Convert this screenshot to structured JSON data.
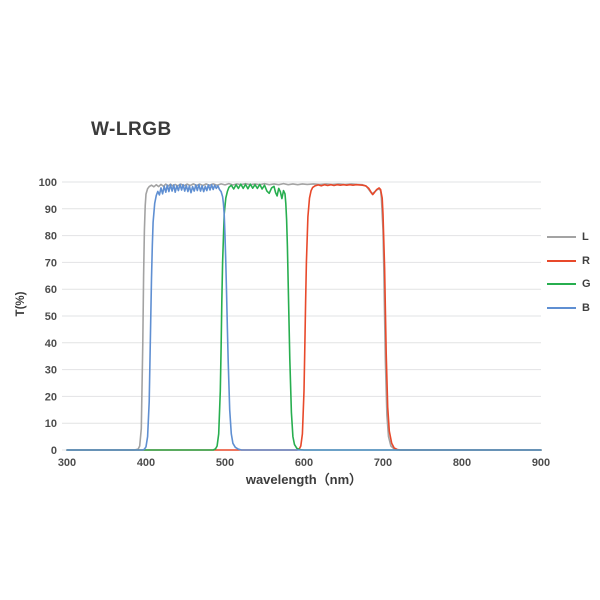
{
  "title": "W-LRGB",
  "colors": {
    "grid": "#e2e3e4",
    "tick_label": "#4d4d4d",
    "axis_title": "#3c3c3c",
    "title_text": "#3b3b3b"
  },
  "chart_data": {
    "type": "line",
    "title": "W-LRGB",
    "xlabel": "wavelength（nm）",
    "ylabel": "T(%)",
    "xlim": [
      300,
      900
    ],
    "ylim": [
      0,
      100
    ],
    "x_ticks": [
      300,
      400,
      500,
      600,
      700,
      800,
      900
    ],
    "y_ticks": [
      0,
      10,
      20,
      30,
      40,
      50,
      60,
      70,
      80,
      90,
      100
    ],
    "grid": "horizontal",
    "legend_position": "right",
    "legend_entries": [
      "L",
      "R",
      "G",
      "B"
    ],
    "series": [
      {
        "name": "L",
        "color": "#a3a3a3",
        "points": [
          [
            300,
            0
          ],
          [
            385,
            0
          ],
          [
            390,
            0.3
          ],
          [
            392,
            1.5
          ],
          [
            394,
            8
          ],
          [
            396,
            40
          ],
          [
            397,
            65
          ],
          [
            398,
            82
          ],
          [
            399,
            91
          ],
          [
            400,
            95.5
          ],
          [
            402,
            97.5
          ],
          [
            404,
            98.3
          ],
          [
            407,
            98.8
          ],
          [
            410,
            98.2
          ],
          [
            413,
            99.0
          ],
          [
            416,
            98.3
          ],
          [
            419,
            99.1
          ],
          [
            422,
            98.4
          ],
          [
            425,
            99.2
          ],
          [
            428,
            98.5
          ],
          [
            431,
            99.2
          ],
          [
            434,
            98.5
          ],
          [
            437,
            99.1
          ],
          [
            440,
            98.6
          ],
          [
            444,
            99.2
          ],
          [
            448,
            98.6
          ],
          [
            452,
            99.2
          ],
          [
            456,
            98.7
          ],
          [
            460,
            99.3
          ],
          [
            464,
            98.7
          ],
          [
            468,
            99.2
          ],
          [
            472,
            98.7
          ],
          [
            476,
            99.3
          ],
          [
            480,
            98.8
          ],
          [
            485,
            99.3
          ],
          [
            490,
            98.8
          ],
          [
            495,
            99.3
          ],
          [
            500,
            98.9
          ],
          [
            505,
            99.4
          ],
          [
            510,
            98.9
          ],
          [
            515,
            99.3
          ],
          [
            520,
            99.0
          ],
          [
            526,
            99.4
          ],
          [
            532,
            99.0
          ],
          [
            538,
            99.3
          ],
          [
            544,
            99.0
          ],
          [
            550,
            99.4
          ],
          [
            556,
            99.0
          ],
          [
            562,
            99.3
          ],
          [
            568,
            99.0
          ],
          [
            574,
            99.4
          ],
          [
            580,
            99.0
          ],
          [
            586,
            99.3
          ],
          [
            592,
            99.0
          ],
          [
            598,
            99.3
          ],
          [
            604,
            99.1
          ],
          [
            612,
            99.3
          ],
          [
            620,
            99.1
          ],
          [
            628,
            99.3
          ],
          [
            636,
            99.1
          ],
          [
            644,
            99.3
          ],
          [
            652,
            99.1
          ],
          [
            660,
            99.3
          ],
          [
            668,
            99.1
          ],
          [
            674,
            99.0
          ],
          [
            679,
            98.4
          ],
          [
            683,
            96.8
          ],
          [
            686,
            95.6
          ],
          [
            689,
            96.2
          ],
          [
            692,
            97.0
          ],
          [
            695,
            97.5
          ],
          [
            697,
            96.8
          ],
          [
            698,
            94
          ],
          [
            700,
            82
          ],
          [
            701,
            68
          ],
          [
            702,
            50
          ],
          [
            703,
            33
          ],
          [
            705,
            13
          ],
          [
            707,
            5
          ],
          [
            710,
            1.5
          ],
          [
            714,
            0.4
          ],
          [
            718,
            0
          ],
          [
            900,
            0
          ]
        ]
      },
      {
        "name": "R",
        "color": "#e8492b",
        "points": [
          [
            300,
            0
          ],
          [
            591,
            0
          ],
          [
            594,
            0.4
          ],
          [
            596,
            1.5
          ],
          [
            598,
            6
          ],
          [
            600,
            22
          ],
          [
            601,
            38
          ],
          [
            602,
            55
          ],
          [
            603,
            70
          ],
          [
            605,
            87
          ],
          [
            607,
            94
          ],
          [
            609,
            96.8
          ],
          [
            611,
            98
          ],
          [
            614,
            98.6
          ],
          [
            618,
            98.9
          ],
          [
            622,
            98.6
          ],
          [
            626,
            99.0
          ],
          [
            630,
            98.7
          ],
          [
            634,
            99.0
          ],
          [
            638,
            98.7
          ],
          [
            642,
            99.0
          ],
          [
            646,
            98.8
          ],
          [
            650,
            99.0
          ],
          [
            654,
            98.8
          ],
          [
            658,
            99.0
          ],
          [
            662,
            98.8
          ],
          [
            666,
            99.0
          ],
          [
            670,
            98.9
          ],
          [
            674,
            98.8
          ],
          [
            678,
            98.6
          ],
          [
            682,
            97.6
          ],
          [
            685,
            96.2
          ],
          [
            687,
            95.3
          ],
          [
            689,
            96.0
          ],
          [
            692,
            97.2
          ],
          [
            695,
            97.8
          ],
          [
            697,
            97.2
          ],
          [
            699,
            94
          ],
          [
            700,
            88
          ],
          [
            702,
            68
          ],
          [
            703,
            52
          ],
          [
            704,
            36
          ],
          [
            706,
            16
          ],
          [
            708,
            7
          ],
          [
            711,
            2.5
          ],
          [
            714,
            0.8
          ],
          [
            718,
            0.2
          ],
          [
            722,
            0
          ],
          [
            900,
            0
          ]
        ]
      },
      {
        "name": "G",
        "color": "#27ae4f",
        "points": [
          [
            300,
            0
          ],
          [
            485,
            0
          ],
          [
            488,
            0.4
          ],
          [
            490,
            1.5
          ],
          [
            492,
            6
          ],
          [
            494,
            22
          ],
          [
            495,
            38
          ],
          [
            496,
            55
          ],
          [
            497,
            70
          ],
          [
            499,
            88
          ],
          [
            501,
            94
          ],
          [
            503,
            96.5
          ],
          [
            505,
            98
          ],
          [
            508,
            98.8
          ],
          [
            511,
            97.4
          ],
          [
            514,
            99.0
          ],
          [
            517,
            97.6
          ],
          [
            520,
            99.2
          ],
          [
            523,
            97.6
          ],
          [
            526,
            99.1
          ],
          [
            529,
            97.5
          ],
          [
            532,
            99.2
          ],
          [
            535,
            97.7
          ],
          [
            538,
            99.0
          ],
          [
            541,
            97.6
          ],
          [
            544,
            99.1
          ],
          [
            547,
            97.4
          ],
          [
            550,
            98.8
          ],
          [
            553,
            96.6
          ],
          [
            556,
            95.8
          ],
          [
            559,
            97.8
          ],
          [
            562,
            98.4
          ],
          [
            564,
            96.0
          ],
          [
            566,
            94.8
          ],
          [
            568,
            97.6
          ],
          [
            570,
            96.4
          ],
          [
            572,
            93.8
          ],
          [
            574,
            96.8
          ],
          [
            576,
            95.6
          ],
          [
            577,
            92
          ],
          [
            578,
            86
          ],
          [
            579,
            76
          ],
          [
            580,
            62
          ],
          [
            581,
            48
          ],
          [
            582,
            34
          ],
          [
            584,
            14
          ],
          [
            586,
            5
          ],
          [
            588,
            2
          ],
          [
            591,
            0.6
          ],
          [
            595,
            0.1
          ],
          [
            600,
            0
          ],
          [
            900,
            0
          ]
        ]
      },
      {
        "name": "B",
        "color": "#5f8fd2",
        "points": [
          [
            300,
            0
          ],
          [
            396,
            0
          ],
          [
            398,
            0.3
          ],
          [
            400,
            1.2
          ],
          [
            402,
            5
          ],
          [
            404,
            18
          ],
          [
            405,
            32
          ],
          [
            406,
            48
          ],
          [
            407,
            64
          ],
          [
            408,
            76
          ],
          [
            409,
            85
          ],
          [
            411,
            92
          ],
          [
            413,
            95
          ],
          [
            415,
            96.5
          ],
          [
            417,
            95.2
          ],
          [
            419,
            97.8
          ],
          [
            421,
            95.6
          ],
          [
            423,
            98.4
          ],
          [
            425,
            96.2
          ],
          [
            427,
            98.8
          ],
          [
            429,
            96.4
          ],
          [
            431,
            99.0
          ],
          [
            433,
            96.6
          ],
          [
            435,
            98.9
          ],
          [
            437,
            96.2
          ],
          [
            439,
            98.6
          ],
          [
            441,
            96.8
          ],
          [
            443,
            99.1
          ],
          [
            445,
            97.0
          ],
          [
            447,
            99.0
          ],
          [
            449,
            96.6
          ],
          [
            451,
            98.7
          ],
          [
            453,
            96.4
          ],
          [
            455,
            98.5
          ],
          [
            457,
            96.0
          ],
          [
            459,
            98.3
          ],
          [
            461,
            96.6
          ],
          [
            463,
            98.9
          ],
          [
            465,
            96.8
          ],
          [
            467,
            99.0
          ],
          [
            469,
            96.6
          ],
          [
            471,
            98.6
          ],
          [
            473,
            96.4
          ],
          [
            475,
            98.4
          ],
          [
            477,
            96.8
          ],
          [
            479,
            98.9
          ],
          [
            481,
            97.0
          ],
          [
            483,
            99.0
          ],
          [
            485,
            97.2
          ],
          [
            487,
            98.8
          ],
          [
            489,
            97.6
          ],
          [
            491,
            98.6
          ],
          [
            493,
            97.2
          ],
          [
            495,
            96.4
          ],
          [
            497,
            94.5
          ],
          [
            498,
            92
          ],
          [
            499,
            88
          ],
          [
            500,
            80
          ],
          [
            501,
            70
          ],
          [
            502,
            58
          ],
          [
            503,
            45
          ],
          [
            504,
            33
          ],
          [
            506,
            15
          ],
          [
            508,
            6
          ],
          [
            510,
            2.5
          ],
          [
            513,
            1
          ],
          [
            517,
            0.3
          ],
          [
            521,
            0
          ],
          [
            900,
            0
          ]
        ]
      }
    ]
  }
}
